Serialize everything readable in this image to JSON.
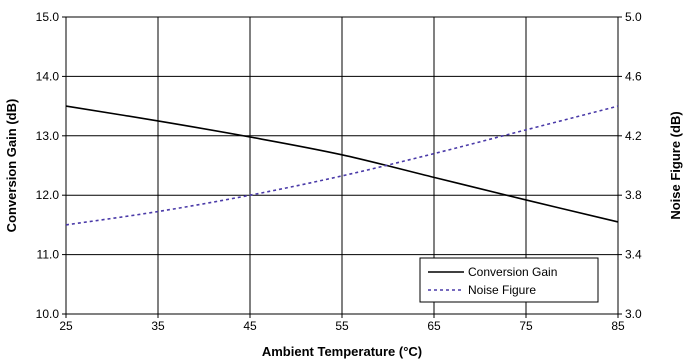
{
  "chart_data": {
    "type": "line",
    "xlabel": "Ambient Temperature (°C)",
    "ylabel": "Conversion Gain (dB)",
    "y2label": "Noise Figure (dB)",
    "xlim": [
      25,
      85
    ],
    "ylim": [
      10.0,
      15.0
    ],
    "y2lim": [
      3.0,
      5.0
    ],
    "x_ticks": [
      "25",
      "35",
      "45",
      "55",
      "65",
      "75",
      "85"
    ],
    "y_ticks": [
      "10.0",
      "11.0",
      "12.0",
      "13.0",
      "14.0",
      "15.0"
    ],
    "y2_ticks": [
      "3.0",
      "3.4",
      "3.8",
      "4.2",
      "4.6",
      "5.0"
    ],
    "grid": true,
    "legend_position": "bottom-right",
    "series": [
      {
        "name": "Conversion Gain",
        "axis": "left",
        "color": "#000000",
        "line_style": "solid",
        "x": [
          25,
          35,
          45,
          55,
          65,
          75,
          85
        ],
        "values": [
          13.5,
          13.25,
          12.98,
          12.68,
          12.3,
          11.92,
          11.55
        ]
      },
      {
        "name": "Noise Figure",
        "axis": "right",
        "color": "#4a3aa8",
        "line_style": "dotted",
        "x": [
          25,
          35,
          45,
          55,
          65,
          75,
          85
        ],
        "values": [
          3.6,
          3.69,
          3.8,
          3.93,
          4.08,
          4.24,
          4.4
        ]
      }
    ]
  }
}
